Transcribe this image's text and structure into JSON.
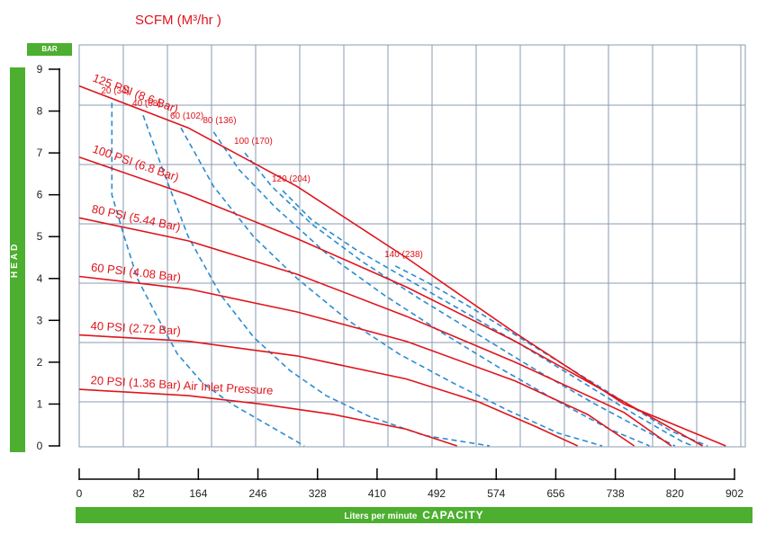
{
  "chart_data": {
    "type": "line",
    "title": "SCFM (M³/hr )",
    "ylabel": "HEAD",
    "y_unit_label": "BAR",
    "xlabel_prefix": "Liters per minute",
    "xlabel": "CAPACITY",
    "xlim": [
      0,
      902
    ],
    "ylim": [
      0,
      9
    ],
    "x_ticks": [
      "0",
      "82",
      "164",
      "246",
      "328",
      "410",
      "492",
      "574",
      "656",
      "738",
      "820",
      "902"
    ],
    "y_ticks": [
      "0",
      "1",
      "2",
      "3",
      "4",
      "5",
      "6",
      "7",
      "8",
      "9"
    ],
    "grid": true,
    "pressure_curves": [
      {
        "label": "125 PSI (8.6 Bar)",
        "points": [
          [
            0,
            8.6
          ],
          [
            150,
            7.6
          ],
          [
            300,
            6.2
          ],
          [
            450,
            4.5
          ],
          [
            600,
            2.7
          ],
          [
            750,
            1.0
          ],
          [
            890,
            0.0
          ]
        ]
      },
      {
        "label": "100 PSI (6.8 Bar)",
        "points": [
          [
            0,
            6.9
          ],
          [
            150,
            6.0
          ],
          [
            300,
            4.95
          ],
          [
            450,
            3.8
          ],
          [
            600,
            2.5
          ],
          [
            750,
            1.05
          ],
          [
            858,
            0.0
          ]
        ]
      },
      {
        "label": "80 PSI (5.44 Bar)",
        "points": [
          [
            0,
            5.45
          ],
          [
            150,
            4.9
          ],
          [
            300,
            4.1
          ],
          [
            450,
            3.1
          ],
          [
            600,
            2.0
          ],
          [
            750,
            0.8
          ],
          [
            815,
            0.0
          ]
        ]
      },
      {
        "label": "60 PSI (4.08 Bar)",
        "points": [
          [
            0,
            4.05
          ],
          [
            150,
            3.75
          ],
          [
            300,
            3.2
          ],
          [
            450,
            2.5
          ],
          [
            600,
            1.55
          ],
          [
            700,
            0.75
          ],
          [
            764,
            0.0
          ]
        ]
      },
      {
        "label": "40 PSI (2.72 Bar)",
        "points": [
          [
            0,
            2.65
          ],
          [
            150,
            2.5
          ],
          [
            300,
            2.15
          ],
          [
            450,
            1.6
          ],
          [
            550,
            1.05
          ],
          [
            630,
            0.45
          ],
          [
            686,
            0.0
          ]
        ]
      },
      {
        "label": "20 PSI (1.36 Bar) Air Inlet Pressure",
        "points": [
          [
            0,
            1.35
          ],
          [
            150,
            1.2
          ],
          [
            250,
            1.0
          ],
          [
            350,
            0.75
          ],
          [
            450,
            0.4
          ],
          [
            520,
            0.0
          ]
        ]
      }
    ],
    "air_curves": [
      {
        "label": "20 (34)",
        "points": [
          [
            45,
            8.2
          ],
          [
            45,
            6.0
          ],
          [
            62,
            5.0
          ],
          [
            80,
            4.0
          ],
          [
            110,
            3.0
          ],
          [
            135,
            2.2
          ],
          [
            170,
            1.5
          ],
          [
            210,
            1.0
          ],
          [
            260,
            0.5
          ],
          [
            310,
            0.0
          ]
        ]
      },
      {
        "label": "40 (68)",
        "points": [
          [
            88,
            7.9
          ],
          [
            115,
            6.6
          ],
          [
            150,
            5.0
          ],
          [
            195,
            3.6
          ],
          [
            240,
            2.6
          ],
          [
            290,
            1.8
          ],
          [
            340,
            1.2
          ],
          [
            400,
            0.7
          ],
          [
            475,
            0.25
          ],
          [
            565,
            0.0
          ]
        ]
      },
      {
        "label": "60 (102)",
        "points": [
          [
            140,
            7.6
          ],
          [
            185,
            6.2
          ],
          [
            240,
            5.0
          ],
          [
            300,
            4.0
          ],
          [
            370,
            3.0
          ],
          [
            440,
            2.2
          ],
          [
            515,
            1.5
          ],
          [
            590,
            0.85
          ],
          [
            660,
            0.3
          ],
          [
            720,
            0.0
          ]
        ]
      },
      {
        "label": "80 (136)",
        "points": [
          [
            185,
            7.5
          ],
          [
            220,
            6.6
          ],
          [
            270,
            5.7
          ],
          [
            340,
            4.6
          ],
          [
            420,
            3.6
          ],
          [
            500,
            2.7
          ],
          [
            580,
            1.85
          ],
          [
            660,
            1.05
          ],
          [
            730,
            0.4
          ],
          [
            785,
            0.0
          ]
        ]
      },
      {
        "label": "100 (170)",
        "points": [
          [
            228,
            7.0
          ],
          [
            265,
            6.2
          ],
          [
            320,
            5.3
          ],
          [
            390,
            4.4
          ],
          [
            470,
            3.5
          ],
          [
            550,
            2.65
          ],
          [
            630,
            1.8
          ],
          [
            710,
            1.0
          ],
          [
            780,
            0.35
          ],
          [
            820,
            0.0
          ]
        ]
      },
      {
        "label": "120 (204)",
        "points": [
          [
            280,
            6.1
          ],
          [
            320,
            5.4
          ],
          [
            380,
            4.7
          ],
          [
            450,
            4.0
          ],
          [
            530,
            3.2
          ],
          [
            610,
            2.4
          ],
          [
            690,
            1.55
          ],
          [
            765,
            0.75
          ],
          [
            830,
            0.1
          ],
          [
            845,
            0.0
          ]
        ]
      },
      {
        "label": "140 (238)",
        "points": [
          [
            435,
            4.3
          ],
          [
            480,
            3.9
          ],
          [
            540,
            3.3
          ],
          [
            610,
            2.55
          ],
          [
            680,
            1.8
          ],
          [
            750,
            1.05
          ],
          [
            815,
            0.35
          ],
          [
            865,
            0.0
          ]
        ]
      }
    ]
  },
  "colors": {
    "pressure_curve": "#e0141b",
    "air_curve": "#2b8cd0",
    "grid": "#8a9bb0",
    "band": "#4caf2f",
    "axis": "#000000"
  }
}
